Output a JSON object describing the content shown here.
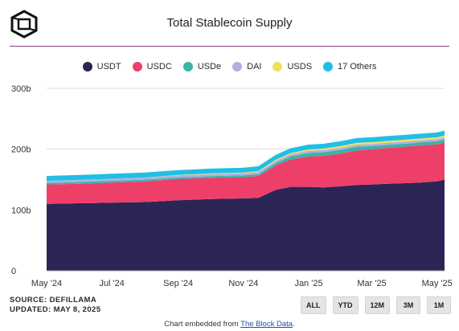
{
  "header": {
    "title": "Total Stablecoin Supply"
  },
  "chart_data": {
    "type": "area",
    "stacked": true,
    "title": "Total Stablecoin Supply",
    "xlabel": "",
    "ylabel": "",
    "ylim": [
      0,
      300
    ],
    "y_ticks": [
      "0",
      "100b",
      "200b",
      "300b"
    ],
    "x_ticks": [
      "May '24",
      "Jul '24",
      "Sep '24",
      "Nov '24",
      "Jan '25",
      "Mar '25",
      "May '25"
    ],
    "legend_position": "top",
    "grid": true,
    "x": [
      "2024-05-01",
      "2024-06-01",
      "2024-07-01",
      "2024-08-01",
      "2024-09-01",
      "2024-10-01",
      "2024-11-01",
      "2024-11-15",
      "2024-12-01",
      "2024-12-15",
      "2025-01-01",
      "2025-01-15",
      "2025-02-01",
      "2025-02-15",
      "2025-03-01",
      "2025-03-15",
      "2025-04-01",
      "2025-04-15",
      "2025-05-01",
      "2025-05-08"
    ],
    "series": [
      {
        "name": "USDT",
        "color": "#2b2555",
        "values": [
          110,
          111,
          112,
          113,
          116,
          118,
          119,
          120,
          133,
          138,
          138,
          137,
          139,
          141,
          142,
          143,
          144,
          145,
          147,
          150
        ]
      },
      {
        "name": "USDC",
        "color": "#ee3f69",
        "values": [
          32,
          32,
          33,
          34,
          35,
          35,
          35,
          36,
          40,
          45,
          50,
          52,
          54,
          57,
          58,
          59,
          60,
          61,
          61,
          61
        ]
      },
      {
        "name": "USDe",
        "color": "#3bb3a7",
        "values": [
          2.5,
          3,
          3,
          3,
          2.5,
          2.5,
          3,
          3,
          4,
          5,
          6,
          6,
          6,
          6,
          5,
          5,
          5,
          5,
          5,
          5
        ]
      },
      {
        "name": "DAI",
        "color": "#b3aee0",
        "values": [
          3.5,
          3.5,
          3.5,
          3.5,
          3.5,
          3.5,
          3.5,
          3.5,
          3.5,
          3.5,
          3.5,
          3.5,
          3.5,
          3.5,
          3.5,
          3.5,
          3.5,
          3.5,
          3.5,
          3.5
        ]
      },
      {
        "name": "USDS",
        "color": "#f3e05a",
        "values": [
          0,
          0,
          0,
          0,
          0.5,
          1,
          1,
          1.5,
          2,
          2,
          2,
          2.5,
          3,
          3,
          3,
          3,
          3,
          3,
          3,
          3
        ]
      },
      {
        "name": "17 Others",
        "color": "#1fbfe6",
        "values": [
          8,
          8,
          8,
          8,
          8,
          8,
          8,
          8,
          8,
          8,
          8,
          8,
          8,
          8,
          8,
          8,
          8,
          8,
          8,
          8
        ]
      }
    ]
  },
  "footer": {
    "source": "SOURCE: DEFILLAMA",
    "updated": "UPDATED: MAY 8, 2025",
    "range_buttons": [
      "ALL",
      "YTD",
      "12M",
      "3M",
      "1M"
    ],
    "embed_prefix": "Chart embedded from ",
    "embed_link": "The Block Data",
    "embed_suffix": "."
  }
}
